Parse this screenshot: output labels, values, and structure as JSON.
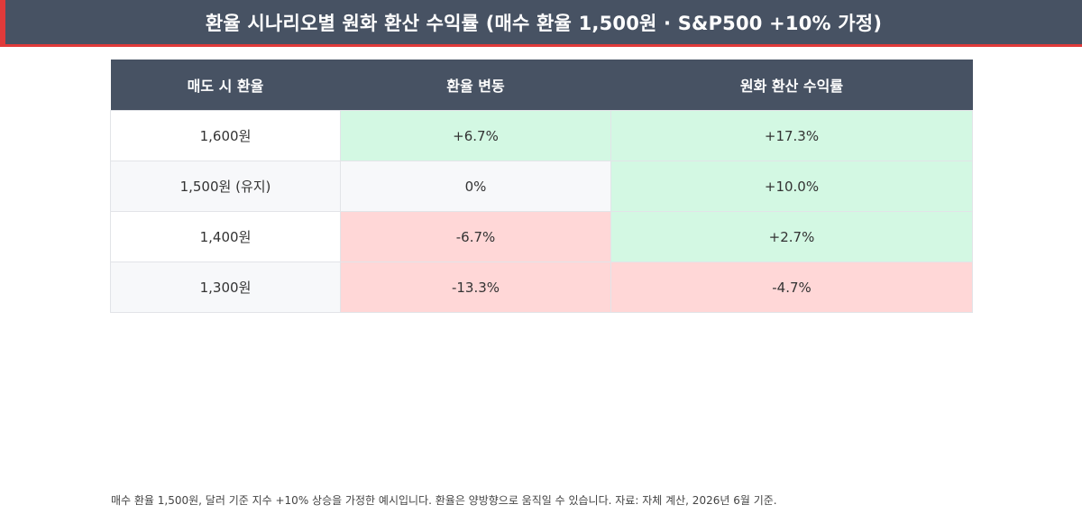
{
  "title": "환율 시나리오별 원화 환산 수익률 (매수 환율 1,500원 · S&P500 +10% 가정)",
  "colors": {
    "header_bg": "#475263",
    "accent_red": "#e03a3a",
    "positive_bg": "#d3f8e3",
    "negative_bg": "#ffd7d7",
    "neutral_bg": "#f7f8fa"
  },
  "table": {
    "headers": [
      "매도 시 환율",
      "환율 변동",
      "원화 환산 수익률"
    ],
    "rows": [
      {
        "rate": "1,600원",
        "change": "+6.7%",
        "return": "+17.3%"
      },
      {
        "rate": "1,500원 (유지)",
        "change": "0%",
        "return": "+10.0%"
      },
      {
        "rate": "1,400원",
        "change": "-6.7%",
        "return": "+2.7%"
      },
      {
        "rate": "1,300원",
        "change": "-13.3%",
        "return": "-4.7%"
      }
    ]
  },
  "footnote": "매수 환율 1,500원, 달러 기준 지수 +10% 상승을 가정한 예시입니다. 환율은 양방향으로 움직일 수 있습니다. 자료: 자체 계산, 2026년 6월 기준."
}
